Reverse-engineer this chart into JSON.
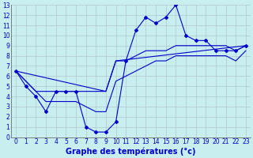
{
  "xlabel": "Graphe des températures (°c)",
  "bg_color": "#c8eef0",
  "grid_color": "#b0c8cc",
  "line_color": "#0000cc",
  "xlim": [
    -0.5,
    23.5
  ],
  "ylim": [
    0,
    13
  ],
  "xticks": [
    0,
    1,
    2,
    3,
    4,
    5,
    6,
    7,
    8,
    9,
    10,
    11,
    12,
    13,
    14,
    15,
    16,
    17,
    18,
    19,
    20,
    21,
    22,
    23
  ],
  "yticks": [
    0,
    1,
    2,
    3,
    4,
    5,
    6,
    7,
    8,
    9,
    10,
    11,
    12,
    13
  ],
  "series": [
    {
      "x": [
        0,
        1,
        2,
        3,
        4,
        5,
        6,
        7,
        8,
        9,
        10,
        11,
        12,
        13,
        14,
        15,
        16,
        17,
        18,
        19,
        20,
        21,
        22,
        23
      ],
      "y": [
        6.5,
        5.0,
        4.0,
        2.5,
        4.5,
        4.5,
        4.5,
        1.0,
        0.5,
        0.5,
        1.5,
        7.5,
        10.5,
        11.8,
        11.2,
        11.8,
        13.0,
        10.0,
        9.5,
        9.5,
        8.5,
        8.5,
        8.5,
        9.0
      ],
      "marker": "D",
      "ms": 2.0,
      "lw": 0.8
    },
    {
      "x": [
        0,
        1,
        2,
        3,
        4,
        5,
        6,
        7,
        8,
        9,
        10,
        11,
        12,
        13,
        14,
        15,
        16,
        17,
        18,
        19,
        20,
        21,
        22,
        23
      ],
      "y": [
        6.5,
        5.5,
        4.5,
        4.5,
        4.5,
        4.5,
        4.5,
        4.5,
        4.5,
        4.5,
        7.5,
        7.5,
        8.0,
        8.5,
        8.5,
        8.5,
        9.0,
        9.0,
        9.0,
        9.0,
        9.0,
        9.0,
        8.5,
        9.0
      ],
      "marker": null,
      "ms": 0,
      "lw": 0.8
    },
    {
      "x": [
        0,
        1,
        2,
        3,
        4,
        5,
        6,
        7,
        8,
        9,
        10,
        11,
        12,
        13,
        14,
        15,
        16,
        17,
        18,
        19,
        20,
        21,
        22,
        23
      ],
      "y": [
        6.5,
        5.5,
        4.5,
        3.5,
        3.5,
        3.5,
        3.5,
        3.0,
        2.5,
        2.5,
        5.5,
        6.0,
        6.5,
        7.0,
        7.5,
        7.5,
        8.0,
        8.0,
        8.0,
        8.0,
        8.0,
        8.0,
        7.5,
        8.5
      ],
      "marker": null,
      "ms": 0,
      "lw": 0.8
    },
    {
      "x": [
        0,
        9,
        10,
        23
      ],
      "y": [
        6.5,
        4.5,
        7.5,
        9.0
      ],
      "marker": null,
      "ms": 0,
      "lw": 0.8
    }
  ],
  "xlabel_fontsize": 7.0,
  "xlabel_color": "#0000cc",
  "xlabel_bold": true,
  "tick_fontsize": 5.5,
  "tick_color": "#0000cc"
}
